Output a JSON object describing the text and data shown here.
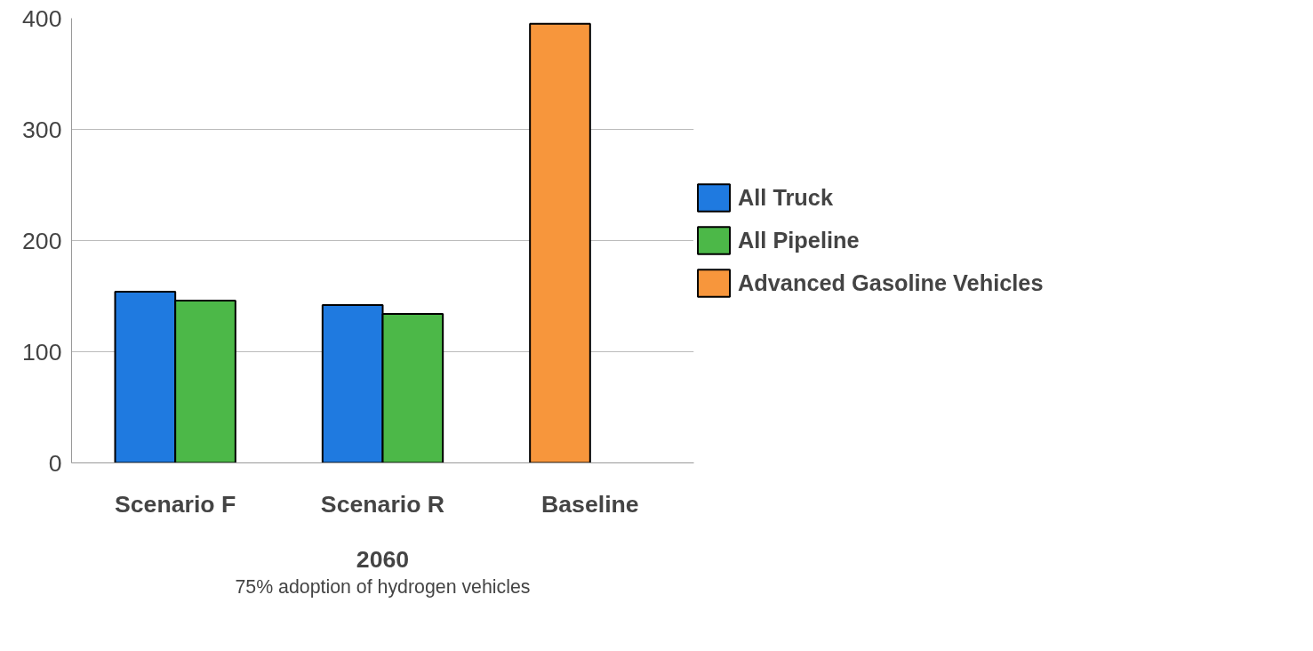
{
  "chart_data": {
    "type": "bar",
    "categories": [
      "Scenario F",
      "Scenario R",
      "Baseline"
    ],
    "series": [
      {
        "name": "All Truck",
        "color": "#1f7ae0",
        "values": [
          154,
          142,
          null
        ]
      },
      {
        "name": "All Pipeline",
        "color": "#4cb848",
        "values": [
          146,
          134,
          null
        ]
      },
      {
        "name": "Advanced Gasoline Vehicles",
        "color": "#f7963c",
        "values": [
          null,
          null,
          395
        ]
      }
    ],
    "ylim": [
      0,
      400
    ],
    "yticks": [
      0,
      100,
      200,
      300,
      400
    ],
    "grid": "y",
    "legend": "right",
    "xlabel": "2060",
    "annotations": [
      "75% adoption of hydrogen vehicles"
    ]
  }
}
